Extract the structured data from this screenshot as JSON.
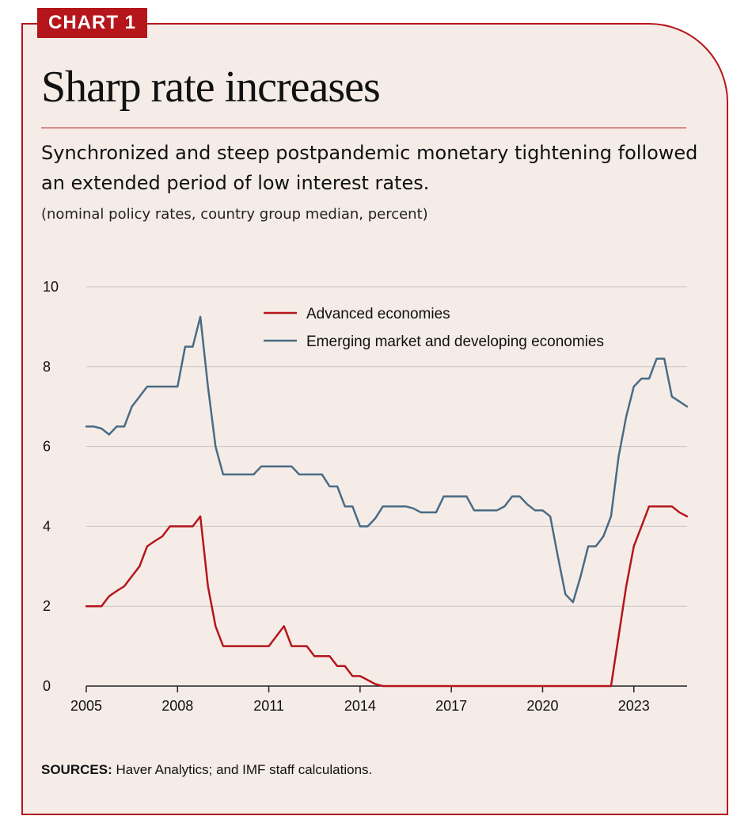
{
  "badge": "CHART 1",
  "title": "Sharp rate increases",
  "subtitle": "Synchronized and steep postpandemic monetary tightening followed an extended period of low interest rates.",
  "units": "(nominal policy rates, country group median, percent)",
  "source": {
    "label": "SOURCES:",
    "text": "Haver Analytics; and IMF staff calculations."
  },
  "chart_data": {
    "type": "line",
    "xlim": [
      2005,
      2024.75
    ],
    "ylim": [
      0,
      10
    ],
    "x_ticks": [
      2005,
      2008,
      2011,
      2014,
      2017,
      2020,
      2023
    ],
    "x_tick_labels": [
      "2005",
      "2008",
      "2011",
      "2014",
      "2017",
      "2020",
      "2023"
    ],
    "y_ticks": [
      0,
      2,
      4,
      6,
      8,
      10
    ],
    "y_tick_labels": [
      "0",
      "2",
      "4",
      "6",
      "8",
      "10"
    ],
    "grid": "horizontal",
    "legend_position": "top-center",
    "series": [
      {
        "name": "Advanced economies",
        "color": "#b5161b",
        "points": [
          [
            2005,
            2.0
          ],
          [
            2005.25,
            2.0
          ],
          [
            2005.5,
            2.0
          ],
          [
            2005.75,
            2.25
          ],
          [
            2006,
            2.38
          ],
          [
            2006.25,
            2.5
          ],
          [
            2006.5,
            2.75
          ],
          [
            2006.75,
            3.0
          ],
          [
            2007,
            3.5
          ],
          [
            2007.25,
            3.63
          ],
          [
            2007.5,
            3.75
          ],
          [
            2007.75,
            4.0
          ],
          [
            2008,
            4.0
          ],
          [
            2008.25,
            4.0
          ],
          [
            2008.5,
            4.0
          ],
          [
            2008.75,
            4.25
          ],
          [
            2009,
            2.5
          ],
          [
            2009.25,
            1.5
          ],
          [
            2009.5,
            1.0
          ],
          [
            2009.75,
            1.0
          ],
          [
            2010,
            1.0
          ],
          [
            2010.25,
            1.0
          ],
          [
            2010.5,
            1.0
          ],
          [
            2010.75,
            1.0
          ],
          [
            2011,
            1.0
          ],
          [
            2011.25,
            1.25
          ],
          [
            2011.5,
            1.5
          ],
          [
            2011.75,
            1.0
          ],
          [
            2012,
            1.0
          ],
          [
            2012.25,
            1.0
          ],
          [
            2012.5,
            0.75
          ],
          [
            2012.75,
            0.75
          ],
          [
            2013,
            0.75
          ],
          [
            2013.25,
            0.5
          ],
          [
            2013.5,
            0.5
          ],
          [
            2013.75,
            0.25
          ],
          [
            2014,
            0.25
          ],
          [
            2014.25,
            0.15
          ],
          [
            2014.5,
            0.05
          ],
          [
            2014.75,
            0.0
          ],
          [
            2015,
            0.0
          ],
          [
            2017,
            0.0
          ],
          [
            2020,
            0.0
          ],
          [
            2022,
            0.0
          ],
          [
            2022.25,
            0.0
          ],
          [
            2022.5,
            1.25
          ],
          [
            2022.75,
            2.5
          ],
          [
            2023,
            3.5
          ],
          [
            2023.25,
            4.0
          ],
          [
            2023.5,
            4.5
          ],
          [
            2023.75,
            4.5
          ],
          [
            2024,
            4.5
          ],
          [
            2024.25,
            4.5
          ],
          [
            2024.5,
            4.35
          ],
          [
            2024.75,
            4.25
          ]
        ]
      },
      {
        "name": "Emerging market and developing economies",
        "color": "#4a6b85",
        "points": [
          [
            2005,
            6.5
          ],
          [
            2005.25,
            6.5
          ],
          [
            2005.5,
            6.45
          ],
          [
            2005.75,
            6.3
          ],
          [
            2006,
            6.5
          ],
          [
            2006.25,
            6.5
          ],
          [
            2006.5,
            7.0
          ],
          [
            2006.75,
            7.25
          ],
          [
            2007,
            7.5
          ],
          [
            2007.25,
            7.5
          ],
          [
            2007.5,
            7.5
          ],
          [
            2007.75,
            7.5
          ],
          [
            2008,
            7.5
          ],
          [
            2008.25,
            8.5
          ],
          [
            2008.5,
            8.5
          ],
          [
            2008.75,
            9.25
          ],
          [
            2009,
            7.5
          ],
          [
            2009.25,
            6.0
          ],
          [
            2009.5,
            5.3
          ],
          [
            2009.75,
            5.3
          ],
          [
            2010,
            5.3
          ],
          [
            2010.25,
            5.3
          ],
          [
            2010.5,
            5.3
          ],
          [
            2010.75,
            5.5
          ],
          [
            2011,
            5.5
          ],
          [
            2011.25,
            5.5
          ],
          [
            2011.5,
            5.5
          ],
          [
            2011.75,
            5.5
          ],
          [
            2012,
            5.3
          ],
          [
            2012.25,
            5.3
          ],
          [
            2012.5,
            5.3
          ],
          [
            2012.75,
            5.3
          ],
          [
            2013,
            5.0
          ],
          [
            2013.25,
            5.0
          ],
          [
            2013.5,
            4.5
          ],
          [
            2013.75,
            4.5
          ],
          [
            2014,
            4.0
          ],
          [
            2014.25,
            4.0
          ],
          [
            2014.5,
            4.2
          ],
          [
            2014.75,
            4.5
          ],
          [
            2015,
            4.5
          ],
          [
            2015.5,
            4.5
          ],
          [
            2015.75,
            4.45
          ],
          [
            2016,
            4.35
          ],
          [
            2016.25,
            4.35
          ],
          [
            2016.5,
            4.35
          ],
          [
            2016.75,
            4.75
          ],
          [
            2017,
            4.75
          ],
          [
            2017.5,
            4.75
          ],
          [
            2017.75,
            4.4
          ],
          [
            2018,
            4.4
          ],
          [
            2018.5,
            4.4
          ],
          [
            2018.75,
            4.5
          ],
          [
            2019,
            4.75
          ],
          [
            2019.25,
            4.75
          ],
          [
            2019.5,
            4.55
          ],
          [
            2019.75,
            4.4
          ],
          [
            2020,
            4.4
          ],
          [
            2020.25,
            4.25
          ],
          [
            2020.5,
            3.25
          ],
          [
            2020.75,
            2.3
          ],
          [
            2021,
            2.1
          ],
          [
            2021.25,
            2.75
          ],
          [
            2021.5,
            3.5
          ],
          [
            2021.75,
            3.5
          ],
          [
            2022,
            3.75
          ],
          [
            2022.25,
            4.25
          ],
          [
            2022.5,
            5.75
          ],
          [
            2022.75,
            6.75
          ],
          [
            2023,
            7.5
          ],
          [
            2023.25,
            7.7
          ],
          [
            2023.5,
            7.7
          ],
          [
            2023.75,
            8.2
          ],
          [
            2024,
            8.2
          ],
          [
            2024.25,
            7.25
          ],
          [
            2024.75,
            7.0
          ]
        ]
      }
    ]
  }
}
